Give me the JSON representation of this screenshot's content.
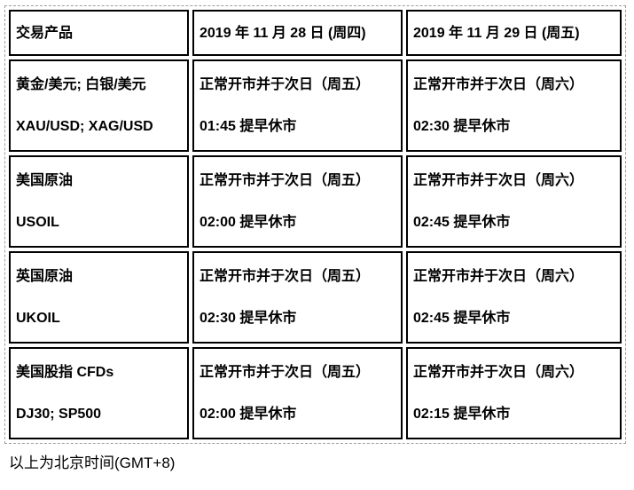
{
  "table": {
    "headers": [
      "交易产品",
      "2019 年 11 月 28 日 (周四)",
      "2019 年 11 月 29 日 (周五)"
    ],
    "rows": [
      {
        "product": [
          "黄金/美元; 白银/美元",
          "XAU/USD; XAG/USD"
        ],
        "day1": [
          "正常开市并于次日（周五）",
          "01:45 提早休市"
        ],
        "day2": [
          "正常开市并于次日（周六）",
          "02:30 提早休市"
        ]
      },
      {
        "product": [
          "美国原油",
          "USOIL"
        ],
        "day1": [
          "正常开市并于次日（周五）",
          "02:00 提早休市"
        ],
        "day2": [
          "正常开市并于次日（周六）",
          "02:45 提早休市"
        ]
      },
      {
        "product": [
          "英国原油",
          "UKOIL"
        ],
        "day1": [
          "正常开市并于次日（周五）",
          "02:30 提早休市"
        ],
        "day2": [
          "正常开市并于次日（周六）",
          "02:45 提早休市"
        ]
      },
      {
        "product": [
          "美国股指 CFDs",
          "DJ30; SP500"
        ],
        "day1": [
          "正常开市并于次日（周五）",
          "02:00 提早休市"
        ],
        "day2": [
          "正常开市并于次日（周六）",
          "02:15 提早休市"
        ]
      }
    ]
  },
  "footer": {
    "note": "以上为北京时间(GMT+8)"
  },
  "colors": {
    "cell_border": "#000000",
    "outer_border": "#9e9e9e",
    "text": "#000000",
    "background": "#ffffff"
  }
}
